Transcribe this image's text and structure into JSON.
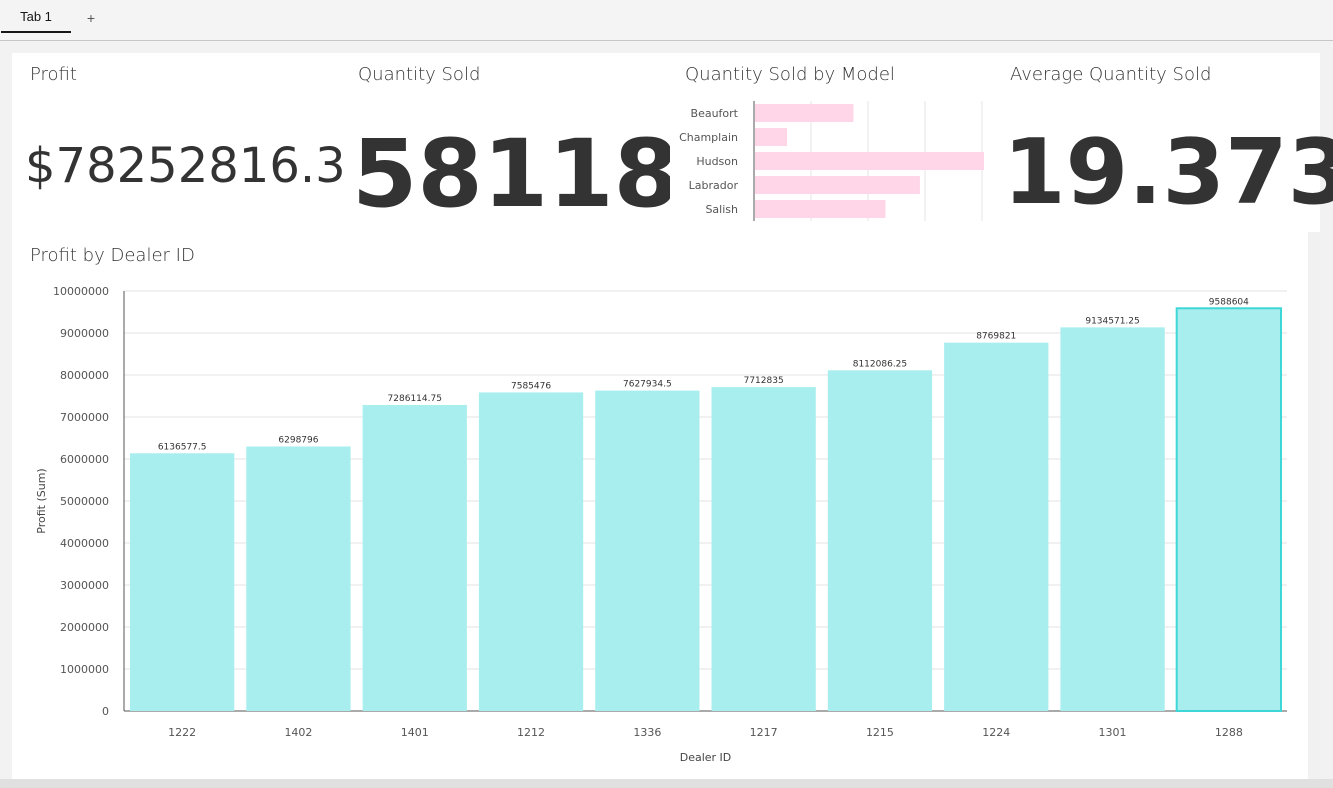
{
  "tabs": {
    "items": [
      "Tab 1"
    ],
    "add_icon": "+"
  },
  "kpis": {
    "profit": {
      "title": "Profit",
      "value": "$78252816.3"
    },
    "quantity": {
      "title": "Quantity Sold",
      "value": "58118"
    },
    "average": {
      "title": "Average Quantity Sold",
      "value": "19.373"
    }
  },
  "model_chart": {
    "title": "Quantity Sold by Model",
    "chart_data": {
      "type": "bar",
      "orientation": "horizontal",
      "categories": [
        "Beaufort",
        "Champlain",
        "Hudson",
        "Labrador",
        "Salish"
      ],
      "values": [
        0.43,
        0.14,
        1.0,
        0.72,
        0.57
      ],
      "value_note": "relative bar lengths; no axis labels shown",
      "color": "#ffd6e8"
    }
  },
  "dealer_chart": {
    "title": "Profit by Dealer ID",
    "chart_data": {
      "type": "bar",
      "categories": [
        "1222",
        "1402",
        "1401",
        "1212",
        "1336",
        "1217",
        "1215",
        "1224",
        "1301",
        "1288"
      ],
      "values": [
        6136577.5,
        6298796,
        7286114.75,
        7585476,
        7627934.5,
        7712835,
        8112086.25,
        8769821,
        9134571.25,
        9588604
      ],
      "value_labels": [
        "6136577.5",
        "6298796",
        "7286114.75",
        "7585476",
        "7627934.5",
        "7712835",
        "8112086.25",
        "8769821",
        "9134571.25",
        "9588604"
      ],
      "xlabel": "Dealer ID",
      "ylabel": "Profit (Sum)",
      "ylim": [
        0,
        10000000
      ],
      "yticks": [
        "0",
        "1000000",
        "2000000",
        "3000000",
        "4000000",
        "5000000",
        "6000000",
        "7000000",
        "8000000",
        "9000000",
        "10000000"
      ],
      "grid": true,
      "highlighted_category": "1288",
      "color": "#a9eeef",
      "highlight_color": "#3ed6d6"
    }
  }
}
